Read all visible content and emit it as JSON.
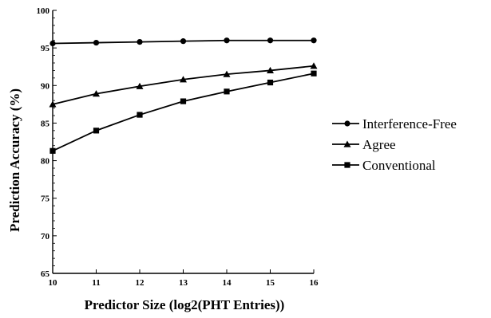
{
  "chart_data": {
    "type": "line",
    "xlabel": "Predictor Size (log2(PHT Entries))",
    "ylabel": "Prediction Accuracy (%)",
    "x": [
      10,
      11,
      12,
      13,
      14,
      15,
      16
    ],
    "xlim": [
      10,
      16
    ],
    "ylim": [
      65,
      100
    ],
    "xticks": [
      "10",
      "11",
      "12",
      "13",
      "14",
      "15",
      "16"
    ],
    "yticks": [
      "65",
      "70",
      "75",
      "80",
      "85",
      "90",
      "95",
      "100"
    ],
    "grid": false,
    "legend_position": "right",
    "series": [
      {
        "name": "Interference-Free",
        "marker": "circle",
        "values": [
          95.6,
          95.7,
          95.8,
          95.9,
          96.0,
          96.0,
          96.0
        ]
      },
      {
        "name": "Agree",
        "marker": "triangle",
        "values": [
          87.5,
          88.9,
          89.9,
          90.8,
          91.5,
          92.0,
          92.6
        ]
      },
      {
        "name": "Conventional",
        "marker": "square",
        "values": [
          81.3,
          84.0,
          86.1,
          87.9,
          89.2,
          90.4,
          91.6
        ]
      }
    ]
  }
}
